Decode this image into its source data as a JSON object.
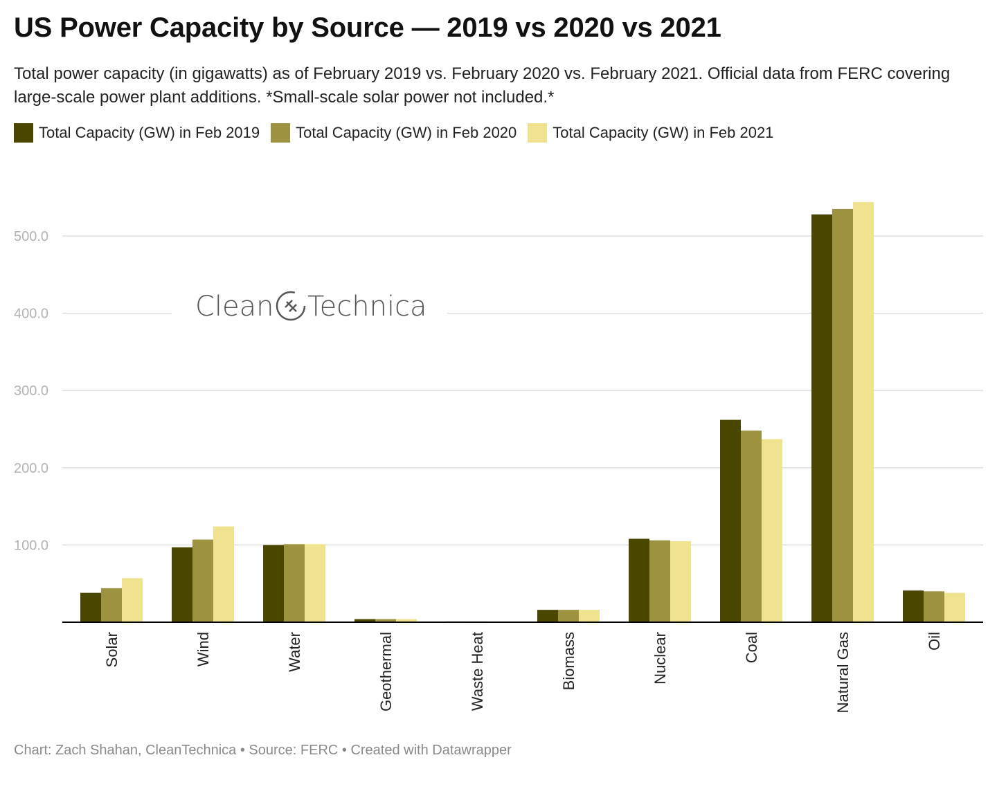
{
  "title": "US Power Capacity by Source — 2019 vs 2020 vs 2021",
  "subtitle": "Total power capacity (in gigawatts) as of February 2019 vs. February 2020 vs. February 2021. Official data from FERC covering large-scale power plant additions. *Small-scale solar power not included.*",
  "watermark": "CleanTechnica",
  "footer": "Chart: Zach Shahan, CleanTechnica • Source: FERC • Created with Datawrapper",
  "colors": {
    "series_2019": "#4a4700",
    "series_2020": "#9c9240",
    "series_2021": "#f0e38f",
    "grid": "#e0e0e0",
    "axis": "#000000"
  },
  "chart_data": {
    "type": "bar",
    "title": "US Power Capacity by Source — 2019 vs 2020 vs 2021",
    "categories": [
      "Solar",
      "Wind",
      "Water",
      "Geothermal",
      "Waste Heat",
      "Biomass",
      "Nuclear",
      "Coal",
      "Natural Gas",
      "Oil"
    ],
    "series": [
      {
        "name": "Total Capacity (GW) in Feb 2019",
        "values": [
          38,
          97,
          100,
          4,
          1,
          16,
          108,
          262,
          528,
          41
        ]
      },
      {
        "name": "Total Capacity (GW) in Feb 2020",
        "values": [
          44,
          107,
          101,
          4,
          1,
          16,
          106,
          248,
          535,
          40
        ]
      },
      {
        "name": "Total Capacity (GW) in Feb 2021",
        "values": [
          57,
          124,
          101,
          4,
          1,
          16,
          105,
          237,
          544,
          38
        ]
      }
    ],
    "y_ticks": [
      "100.0",
      "200.0",
      "300.0",
      "400.0",
      "500.0"
    ],
    "ylim": [
      0,
      544
    ],
    "grid": true,
    "legend_position": "top-left"
  }
}
